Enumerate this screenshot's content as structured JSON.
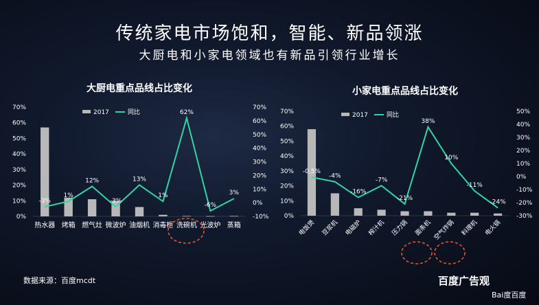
{
  "header": {
    "title": "传统家电市场饱和，智能、新品领涨",
    "subtitle": "大厨电和小家电领域也有新品引领行业增长"
  },
  "footer": {
    "source": "数据来源：百度mcdt",
    "logo": "百度广告观",
    "logo_sub": "Bai度百度"
  },
  "colors": {
    "bar": "#b8b8b8",
    "line": "#2fd6a8",
    "circle": "#e5562b"
  },
  "chart_data": [
    {
      "type": "bar+line",
      "title": "大厨电重点品线占比变化",
      "legend": [
        "2017",
        "同比"
      ],
      "categories": [
        "热水器",
        "烤箱",
        "燃气灶",
        "微波炉",
        "油烟机",
        "消毒柜",
        "洗碗机",
        "光波炉",
        "蒸箱"
      ],
      "bar_values": [
        57,
        12,
        11,
        10,
        6,
        1,
        0.3,
        0.2,
        0.3
      ],
      "line_values": [
        -3,
        1,
        12,
        -3,
        13,
        1,
        62,
        -6,
        3
      ],
      "line_labels": [
        "-3%",
        "1%",
        "12%",
        "-3%",
        "13%",
        "1%",
        "62%",
        "-6%",
        "3%"
      ],
      "left_axis": {
        "ticks": [
          "0%",
          "10%",
          "20%",
          "30%",
          "40%",
          "50%",
          "60%",
          "70%"
        ],
        "range": [
          0,
          70
        ]
      },
      "right_axis": {
        "ticks": [
          "-10%",
          "0%",
          "10%",
          "20%",
          "30%",
          "40%",
          "50%",
          "60%",
          "70%"
        ],
        "range": [
          -10,
          70
        ]
      },
      "highlight": "洗碗机"
    },
    {
      "type": "bar+line",
      "title": "小家电重点品线占比变化",
      "legend": [
        "2017",
        "同比"
      ],
      "categories": [
        "电饭煲",
        "豆浆机",
        "电磁炉",
        "榨汁机",
        "压力锅",
        "面条机",
        "空气炸锅",
        "料理机",
        "电火锅"
      ],
      "bar_values": [
        58,
        15,
        5,
        4,
        3,
        3,
        2,
        2,
        1.5
      ],
      "line_values": [
        -0.5,
        -4,
        -16,
        -7,
        -21,
        38,
        10,
        -11,
        -24
      ],
      "line_labels": [
        "-0.5%",
        "-4%",
        "-16%",
        "-7%",
        "-21%",
        "38%",
        "10%",
        "-11%",
        "-24%"
      ],
      "left_axis": {
        "ticks": [
          "0%",
          "10%",
          "20%",
          "30%",
          "40%",
          "50%",
          "60%",
          "70%"
        ],
        "range": [
          0,
          70
        ]
      },
      "right_axis": {
        "ticks": [
          "-30%",
          "-20%",
          "-10%",
          "0%",
          "10%",
          "20%",
          "30%",
          "40%",
          "50%"
        ],
        "range": [
          -30,
          50
        ]
      },
      "highlight": [
        "面条机",
        "空气炸锅"
      ]
    }
  ]
}
